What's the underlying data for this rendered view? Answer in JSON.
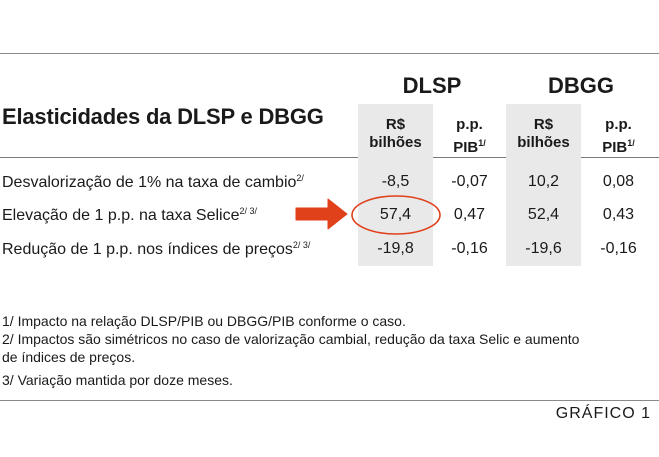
{
  "table": {
    "title": "Elasticidades da DLSP e DBGG",
    "groups": [
      "DLSP",
      "DBGG"
    ],
    "subheaders": [
      {
        "main": "R$",
        "line2": "bilhões",
        "sup": ""
      },
      {
        "main": "p.p.",
        "line2": "PIB",
        "sup": "1/"
      },
      {
        "main": "R$",
        "line2": "bilhões",
        "sup": ""
      },
      {
        "main": "p.p.",
        "line2": "PIB",
        "sup": "1/"
      }
    ],
    "rows": [
      {
        "label": "Desvalorização de 1% na taxa de cambio",
        "sup": "2/",
        "values": [
          "-8,5",
          "-0,07",
          "10,2",
          "0,08"
        ]
      },
      {
        "label": "Elevação de 1 p.p. na taxa Selice",
        "sup": "2/ 3/",
        "values": [
          "57,4",
          "0,47",
          "52,4",
          "0,43"
        ]
      },
      {
        "label": "Redução de 1 p.p. nos índices de preços",
        "sup": "2/ 3/",
        "values": [
          "-19,8",
          "-0,16",
          "-19,6",
          "-0,16"
        ]
      }
    ]
  },
  "notes": [
    "1/ Impacto na relação DLSP/PIB ou DBGG/PIB conforme o caso.",
    "2/ Impactos são simétricos no caso de valorização cambial, redução da taxa Selic e aumento",
    "de índices de preços.",
    "3/ Variação mantida por doze meses."
  ],
  "footer": "GRÁFICO 1",
  "colors": {
    "highlight": "#e0401a",
    "shade": "#e9e9e9",
    "rule": "#8a8a8a"
  }
}
